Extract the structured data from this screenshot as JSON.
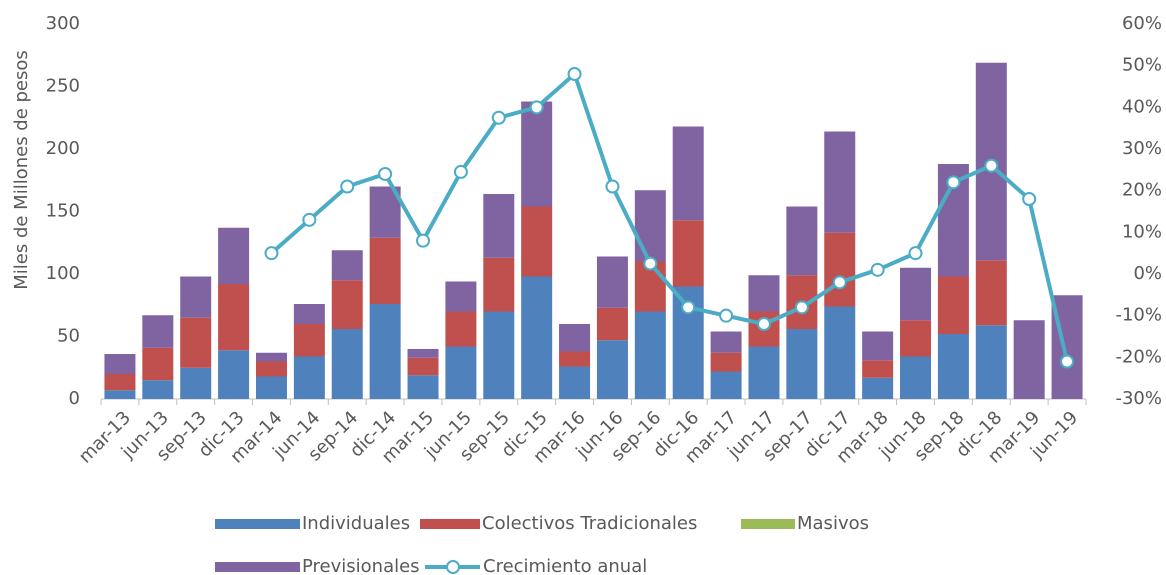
{
  "chart_data": {
    "type": "bar",
    "stacked": true,
    "y_label": "Miles de Millones de pesos",
    "categories": [
      "mar-13",
      "jun-13",
      "sep-13",
      "dic-13",
      "mar-14",
      "jun-14",
      "sep-14",
      "dic-14",
      "mar-15",
      "jun-15",
      "sep-15",
      "dic-15",
      "mar-16",
      "jun-16",
      "sep-16",
      "dic-16",
      "mar-17",
      "jun-17",
      "sep-17",
      "dic-17",
      "mar-18",
      "jun-18",
      "sep-18",
      "dic-18",
      "mar-19",
      "jun-19"
    ],
    "series": [
      {
        "name": "Individuales",
        "color": "#4f81bd",
        "values": [
          7,
          15,
          25,
          39,
          18,
          34,
          56,
          76,
          19,
          42,
          70,
          98,
          26,
          47,
          70,
          90,
          22,
          42,
          56,
          74,
          17,
          34,
          52,
          59,
          0,
          0
        ]
      },
      {
        "name": "Colectivos Tradicionales",
        "color": "#c0504d",
        "values": [
          13,
          26,
          40,
          53,
          12,
          26,
          39,
          53,
          14,
          28,
          43,
          56,
          12,
          26,
          40,
          53,
          15,
          28,
          43,
          59,
          14,
          29,
          46,
          52,
          0,
          0
        ]
      },
      {
        "name": "Masivos",
        "color": "#9bbb59",
        "values": [
          0,
          0,
          0,
          0,
          0,
          0,
          0,
          0,
          0,
          0,
          0,
          0,
          0,
          0,
          0,
          0,
          0,
          0,
          0,
          0,
          0,
          0,
          0,
          0,
          0,
          0
        ]
      },
      {
        "name": "Previsionales",
        "color": "#8064a2",
        "values": [
          16,
          26,
          33,
          45,
          7,
          16,
          24,
          41,
          7,
          24,
          51,
          84,
          22,
          41,
          57,
          75,
          17,
          29,
          55,
          81,
          23,
          42,
          90,
          158,
          63,
          83
        ]
      },
      {
        "name": "Crecimiento anual",
        "color": "#4bacc6",
        "type": "line",
        "axis": "y2",
        "values": [
          null,
          null,
          null,
          null,
          5,
          13,
          21,
          24,
          8,
          24.5,
          37.5,
          40,
          48,
          21,
          2.5,
          -8,
          -10,
          -12,
          -8,
          -2,
          1,
          5,
          22,
          26,
          18,
          -21
        ]
      }
    ],
    "ylim": [
      0,
      300
    ],
    "yticks": [
      0,
      50,
      100,
      150,
      200,
      250,
      300
    ],
    "y2lim": [
      -30,
      60
    ],
    "y2ticks": [
      {
        "value": -30,
        "label": "-30%"
      },
      {
        "value": -20,
        "label": "-20%"
      },
      {
        "value": -10,
        "label": "-10%"
      },
      {
        "value": 0,
        "label": "0%"
      },
      {
        "value": 10,
        "label": "10%"
      },
      {
        "value": 20,
        "label": "20%"
      },
      {
        "value": 30,
        "label": "30%"
      },
      {
        "value": 40,
        "label": "40%"
      },
      {
        "value": 50,
        "label": "50%"
      },
      {
        "value": 60,
        "label": "60%"
      }
    ],
    "grid": false,
    "legend": "bottom"
  }
}
